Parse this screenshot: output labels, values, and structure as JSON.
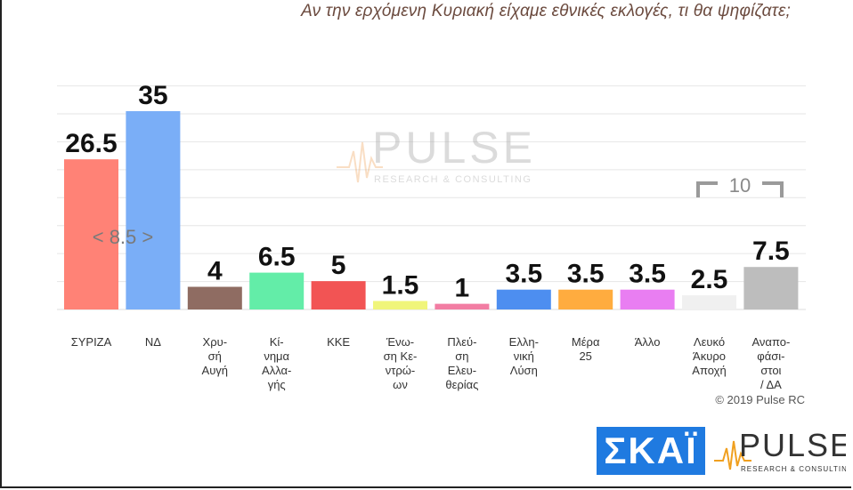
{
  "title": "Αν την ερχόμενη Κυριακή είχαμε εθνικές εκλογές, τι θα ψηφίζατε;",
  "copyright": "© 2019 Pulse RC",
  "logos": {
    "skai": "ΣΚΑΪ",
    "pulse_main": "PULSE",
    "pulse_sub": "RESEARCH & CONSULTING"
  },
  "annotations": {
    "gap_label": "< 8.5 >",
    "bracket_label": "10"
  },
  "colors": {
    "title": "#6b4a3e",
    "grid": "#e6e6e6"
  },
  "chart_data": {
    "type": "bar",
    "ylim": [
      0,
      40
    ],
    "grid": true,
    "categories": [
      [
        "ΣΥΡΙΖΑ"
      ],
      [
        "ΝΔ"
      ],
      [
        "Χρυ-",
        "σή",
        "Αυγή"
      ],
      [
        "Κί-",
        "νημα",
        "Αλλα-",
        "γής"
      ],
      [
        "ΚΚΕ"
      ],
      [
        "Ένω-",
        "ση Κε-",
        "ντρώ-",
        "ων"
      ],
      [
        "Πλεύ-",
        "ση",
        "Ελευ-",
        "θερίας"
      ],
      [
        "Ελλη-",
        "νική",
        "Λύση"
      ],
      [
        "Μέρα",
        "25"
      ],
      [
        "Άλλο"
      ],
      [
        "Λευκό",
        "Άκυρο",
        "Αποχή"
      ],
      [
        "Αναπο-",
        "φάσι-",
        "στοι",
        "/ ΔΑ"
      ]
    ],
    "values": [
      26.5,
      35,
      4,
      6.5,
      5,
      1.5,
      1,
      3.5,
      3.5,
      3.5,
      2.5,
      7.5
    ],
    "value_labels": [
      "26.5",
      "35",
      "4",
      "6.5",
      "5",
      "1.5",
      "1",
      "3.5",
      "3.5",
      "3.5",
      "2.5",
      "7.5"
    ],
    "colors": [
      "#ff8276",
      "#7aaef7",
      "#8f6c62",
      "#63eda8",
      "#f25454",
      "#f0f57a",
      "#f27da3",
      "#4d8ef0",
      "#ffac3f",
      "#e97ef2",
      "#f0f0f0",
      "#bdbdbd"
    ]
  }
}
